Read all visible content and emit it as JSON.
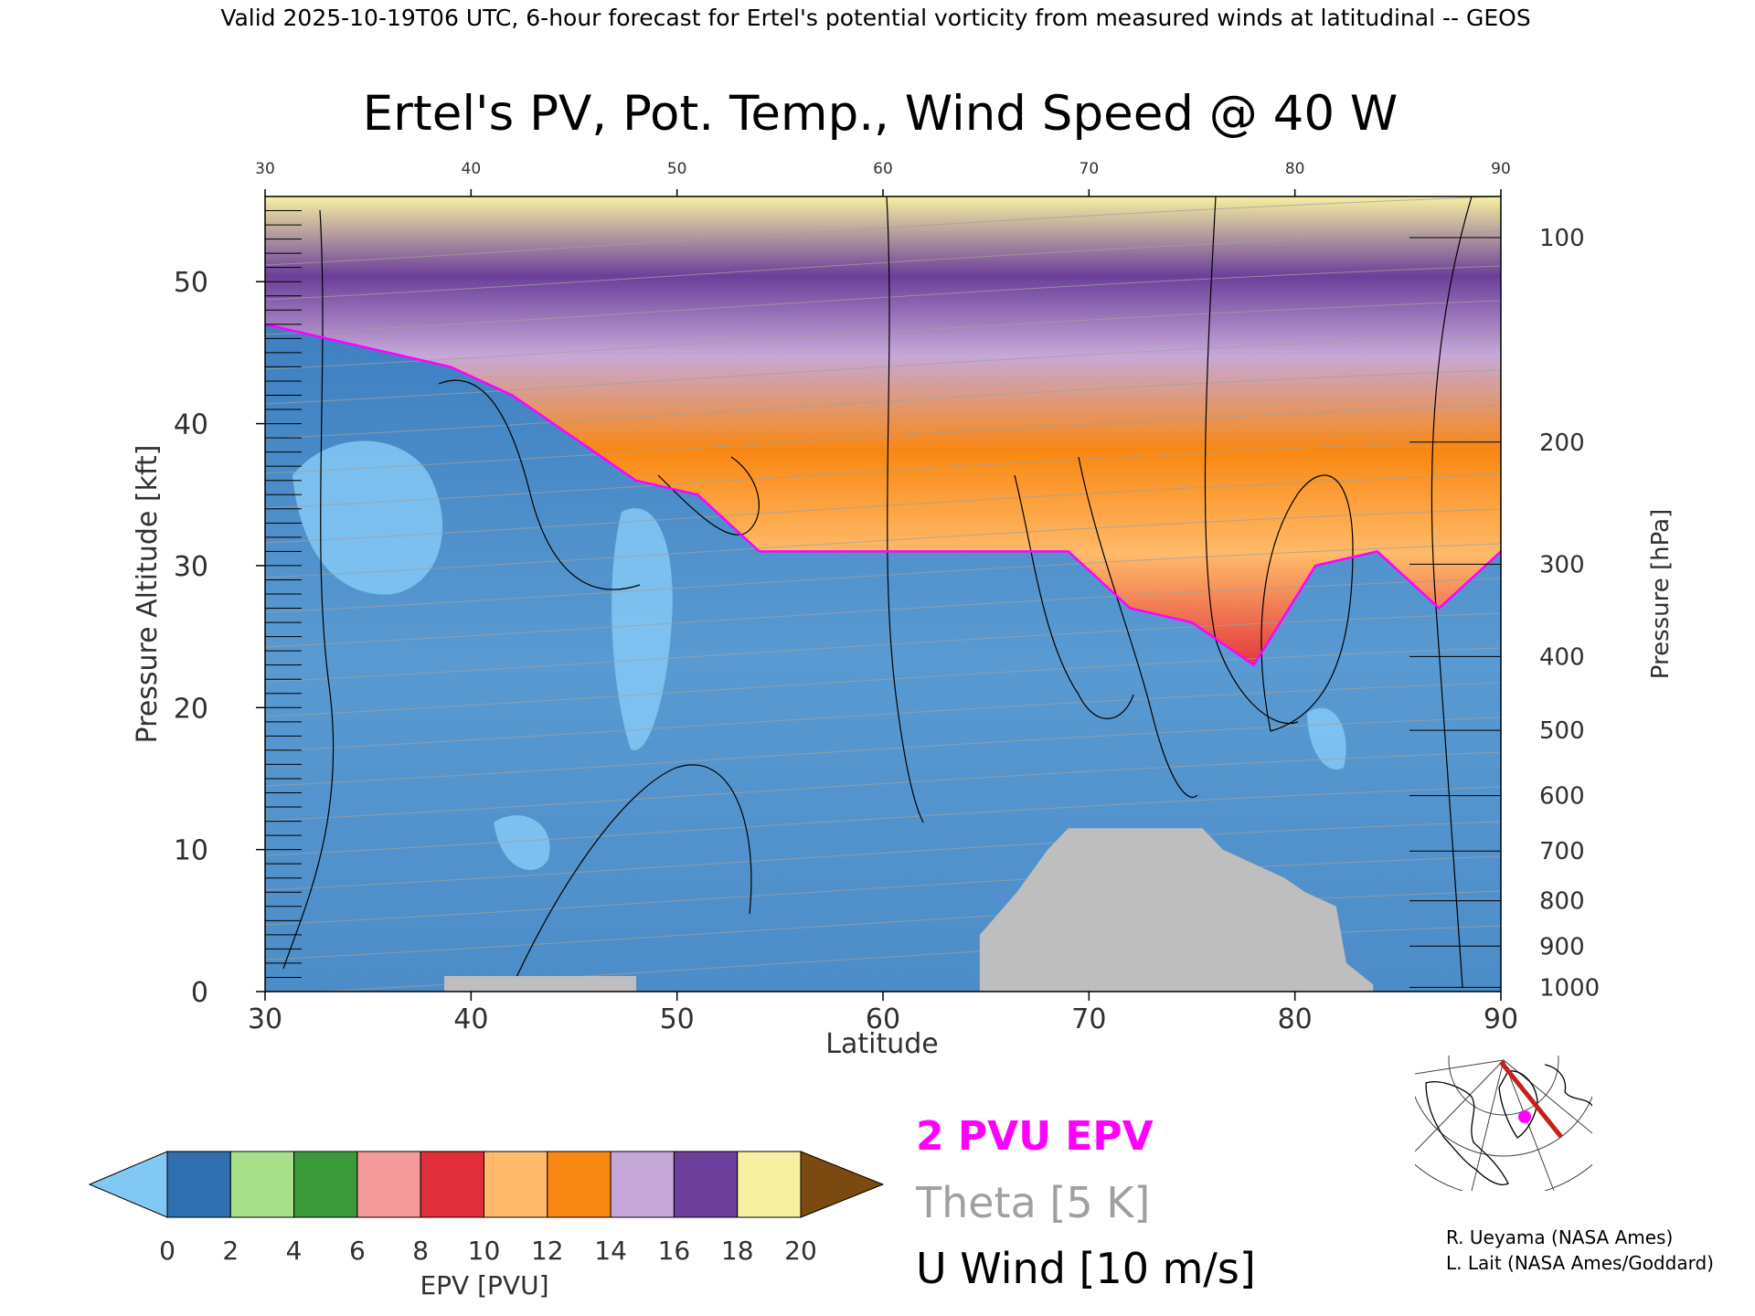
{
  "header": {
    "valid_line": "Valid 2025-10-19T06 UTC, 6-hour forecast for Ertel's potential vorticity from measured winds at latitudinal -- GEOS"
  },
  "chart_data": {
    "type": "heatmap",
    "title": "Ertel's PV, Pot. Temp., Wind Speed @ 40 W",
    "xlabel": "Latitude",
    "ylabel_left": "Pressure Altitude [kft]",
    "ylabel_right": "Pressure [hPa]",
    "xlim": [
      30,
      90
    ],
    "ylim": [
      0,
      56
    ],
    "x_ticks": [
      30,
      40,
      50,
      60,
      70,
      80,
      90
    ],
    "x_tick_labels": [
      "30",
      "40",
      "50",
      "60",
      "70",
      "80",
      "90"
    ],
    "y_ticks": [
      0,
      10,
      20,
      30,
      40,
      50
    ],
    "y_tick_labels": [
      "0",
      "10",
      "20",
      "30",
      "40",
      "50"
    ],
    "pressure_ticks": [
      {
        "label": "100",
        "kft": 53.1
      },
      {
        "label": "200",
        "kft": 38.7
      },
      {
        "label": "300",
        "kft": 30.1
      },
      {
        "label": "400",
        "kft": 23.6
      },
      {
        "label": "500",
        "kft": 18.4
      },
      {
        "label": "600",
        "kft": 13.8
      },
      {
        "label": "700",
        "kft": 9.9
      },
      {
        "label": "800",
        "kft": 6.4
      },
      {
        "label": "900",
        "kft": 3.2
      },
      {
        "label": "1000",
        "kft": 0.3
      }
    ],
    "tropopause_2pvu_kft": [
      {
        "lat": 30,
        "kft": 47
      },
      {
        "lat": 33,
        "kft": 46
      },
      {
        "lat": 36,
        "kft": 45
      },
      {
        "lat": 39,
        "kft": 44
      },
      {
        "lat": 42,
        "kft": 42
      },
      {
        "lat": 45,
        "kft": 39
      },
      {
        "lat": 48,
        "kft": 36
      },
      {
        "lat": 51,
        "kft": 35
      },
      {
        "lat": 54,
        "kft": 31
      },
      {
        "lat": 57,
        "kft": 31
      },
      {
        "lat": 60,
        "kft": 31
      },
      {
        "lat": 63,
        "kft": 31
      },
      {
        "lat": 66,
        "kft": 31
      },
      {
        "lat": 69,
        "kft": 31
      },
      {
        "lat": 72,
        "kft": 27
      },
      {
        "lat": 75,
        "kft": 26
      },
      {
        "lat": 78,
        "kft": 23
      },
      {
        "lat": 81,
        "kft": 30
      },
      {
        "lat": 84,
        "kft": 31
      },
      {
        "lat": 87,
        "kft": 27
      },
      {
        "lat": 90,
        "kft": 31
      }
    ],
    "terrain_kft": [
      {
        "lat": 64.7,
        "kft": 4
      },
      {
        "lat": 66.5,
        "kft": 7
      },
      {
        "lat": 68,
        "kft": 10
      },
      {
        "lat": 69,
        "kft": 11.5
      },
      {
        "lat": 75.5,
        "kft": 11.5
      },
      {
        "lat": 76.5,
        "kft": 10
      },
      {
        "lat": 78,
        "kft": 9
      },
      {
        "lat": 79.5,
        "kft": 8
      },
      {
        "lat": 80.5,
        "kft": 7
      },
      {
        "lat": 82,
        "kft": 6
      },
      {
        "lat": 82.5,
        "kft": 2
      },
      {
        "lat": 83.8,
        "kft": 0.5
      }
    ],
    "colorbar": {
      "label": "EPV [PVU]",
      "ticks": [
        "0",
        "2",
        "4",
        "6",
        "8",
        "10",
        "12",
        "14",
        "16",
        "18",
        "20"
      ],
      "colors": [
        "#2f6fb0",
        "#a8e08a",
        "#3a9a3a",
        "#f59a9a",
        "#e02f3a",
        "#ffba6a",
        "#f98812",
        "#c6a8d8",
        "#6b3f9a",
        "#f7f0a0",
        "#c88a3a"
      ],
      "under_color": "#82c8f4",
      "over_color": "#7a4a10"
    },
    "legend": [
      {
        "name": "2 PVU EPV",
        "color": "#ff00ff"
      },
      {
        "name": "Theta [5 K]",
        "color": "#a0a0a0"
      },
      {
        "name": "U Wind [10 m/s]",
        "color": "#000000"
      }
    ]
  },
  "inset_map": {
    "track_color": "#c81e1e",
    "marker_color": "#ff00ff"
  },
  "credits": [
    "R. Ueyama (NASA Ames)",
    "L. Lait (NASA Ames/Goddard)"
  ]
}
